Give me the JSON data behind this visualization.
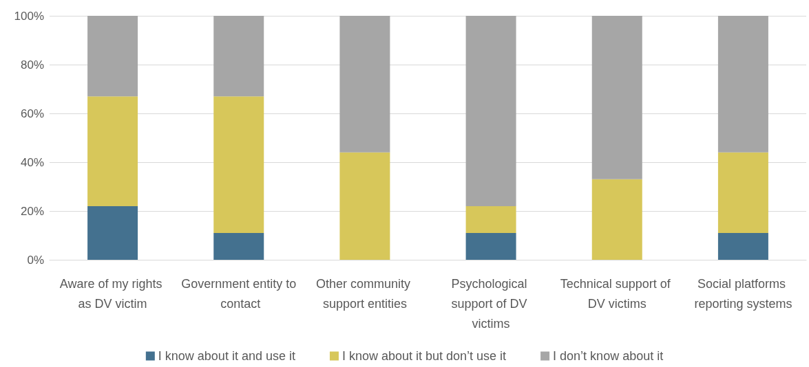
{
  "chart_data": {
    "type": "bar",
    "stacked": true,
    "categories": [
      "Aware of my rights as DV victim",
      "Government entity to contact",
      "Other community support entities",
      "Psychological support of DV victims",
      "Technical support of DV victims",
      "Social platforms reporting systems"
    ],
    "series": [
      {
        "name": "I know about it and use it",
        "color": "#44718f",
        "values": [
          22,
          11,
          0,
          11,
          0,
          11
        ]
      },
      {
        "name": "I know about it but don’t use it",
        "color": "#d7c75a",
        "values": [
          45,
          56,
          44,
          11,
          33,
          33
        ]
      },
      {
        "name": "I don’t know about it",
        "color": "#a6a6a6",
        "values": [
          33,
          33,
          56,
          78,
          67,
          56
        ]
      }
    ],
    "ylim": [
      0,
      100
    ],
    "yticks": [
      {
        "value": 0,
        "label": "0%"
      },
      {
        "value": 20,
        "label": "20%"
      },
      {
        "value": 40,
        "label": "40%"
      },
      {
        "value": 60,
        "label": "60%"
      },
      {
        "value": 80,
        "label": "80%"
      },
      {
        "value": 100,
        "label": "100%"
      }
    ],
    "grid": "y",
    "legend": "bottom"
  }
}
